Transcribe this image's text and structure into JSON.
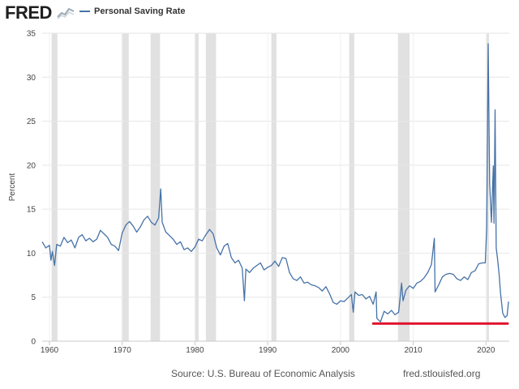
{
  "header": {
    "logo_text": "FRED",
    "series_label": "Personal Saving Rate",
    "line_color": "#4572a7"
  },
  "footer": {
    "source": "Source: U.S. Bureau of Economic Analysis",
    "url": "fred.stlouisfed.org"
  },
  "chart_data": {
    "type": "line",
    "title": "Personal Saving Rate",
    "xlabel": "",
    "ylabel": "Percent",
    "xlim": [
      1959,
      2023.2
    ],
    "ylim": [
      0,
      35
    ],
    "x_ticks": [
      1960,
      1970,
      1980,
      1990,
      2000,
      2010,
      2020
    ],
    "y_ticks": [
      0,
      5,
      10,
      15,
      20,
      25,
      30,
      35
    ],
    "grid": true,
    "recessions": [
      [
        1960.3,
        1961.1
      ],
      [
        1969.9,
        1970.9
      ],
      [
        1973.9,
        1975.2
      ],
      [
        1980.0,
        1980.5
      ],
      [
        1981.5,
        1982.9
      ],
      [
        1990.5,
        1991.2
      ],
      [
        2001.2,
        2001.9
      ],
      [
        2007.9,
        2009.5
      ],
      [
        2020.1,
        2020.4
      ]
    ],
    "annotation": {
      "type": "horizontal-line",
      "y": 2.0,
      "x_start": 2004.5,
      "x_end": 2023.2,
      "color": "#e0102a"
    },
    "series": [
      {
        "name": "Personal Saving Rate",
        "color": "#4572a7",
        "points": [
          [
            1959.0,
            11.3
          ],
          [
            1959.5,
            10.6
          ],
          [
            1960.0,
            10.9
          ],
          [
            1960.2,
            9.2
          ],
          [
            1960.4,
            10.2
          ],
          [
            1960.7,
            8.6
          ],
          [
            1961.0,
            11.0
          ],
          [
            1961.5,
            10.8
          ],
          [
            1962.0,
            11.8
          ],
          [
            1962.5,
            11.2
          ],
          [
            1963.0,
            11.5
          ],
          [
            1963.5,
            10.6
          ],
          [
            1964.0,
            11.8
          ],
          [
            1964.5,
            12.1
          ],
          [
            1965.0,
            11.4
          ],
          [
            1965.5,
            11.7
          ],
          [
            1966.0,
            11.3
          ],
          [
            1966.5,
            11.6
          ],
          [
            1967.0,
            12.6
          ],
          [
            1967.5,
            12.2
          ],
          [
            1968.0,
            11.8
          ],
          [
            1968.5,
            11.0
          ],
          [
            1969.0,
            10.8
          ],
          [
            1969.5,
            10.3
          ],
          [
            1970.0,
            12.3
          ],
          [
            1970.5,
            13.2
          ],
          [
            1971.0,
            13.6
          ],
          [
            1971.5,
            13.1
          ],
          [
            1972.0,
            12.4
          ],
          [
            1972.5,
            13.0
          ],
          [
            1973.0,
            13.8
          ],
          [
            1973.5,
            14.2
          ],
          [
            1974.0,
            13.5
          ],
          [
            1974.5,
            13.2
          ],
          [
            1975.0,
            14.0
          ],
          [
            1975.3,
            17.3
          ],
          [
            1975.5,
            13.5
          ],
          [
            1976.0,
            12.4
          ],
          [
            1976.5,
            12.0
          ],
          [
            1977.0,
            11.6
          ],
          [
            1977.5,
            11.0
          ],
          [
            1978.0,
            11.3
          ],
          [
            1978.5,
            10.4
          ],
          [
            1979.0,
            10.6
          ],
          [
            1979.5,
            10.2
          ],
          [
            1980.0,
            10.7
          ],
          [
            1980.5,
            11.6
          ],
          [
            1981.0,
            11.4
          ],
          [
            1981.5,
            12.1
          ],
          [
            1982.0,
            12.7
          ],
          [
            1982.5,
            12.2
          ],
          [
            1983.0,
            10.6
          ],
          [
            1983.5,
            9.8
          ],
          [
            1984.0,
            10.8
          ],
          [
            1984.5,
            11.1
          ],
          [
            1985.0,
            9.5
          ],
          [
            1985.5,
            8.9
          ],
          [
            1986.0,
            9.2
          ],
          [
            1986.5,
            8.3
          ],
          [
            1986.8,
            4.6
          ],
          [
            1987.0,
            8.2
          ],
          [
            1987.5,
            7.8
          ],
          [
            1988.0,
            8.3
          ],
          [
            1988.5,
            8.6
          ],
          [
            1989.0,
            8.9
          ],
          [
            1989.5,
            8.1
          ],
          [
            1990.0,
            8.4
          ],
          [
            1990.5,
            8.6
          ],
          [
            1991.0,
            9.1
          ],
          [
            1991.5,
            8.5
          ],
          [
            1992.0,
            9.5
          ],
          [
            1992.5,
            9.4
          ],
          [
            1993.0,
            7.8
          ],
          [
            1993.5,
            7.1
          ],
          [
            1994.0,
            6.9
          ],
          [
            1994.5,
            7.3
          ],
          [
            1995.0,
            6.6
          ],
          [
            1995.5,
            6.7
          ],
          [
            1996.0,
            6.4
          ],
          [
            1996.5,
            6.3
          ],
          [
            1997.0,
            6.1
          ],
          [
            1997.5,
            5.7
          ],
          [
            1998.0,
            6.2
          ],
          [
            1998.5,
            5.4
          ],
          [
            1999.0,
            4.4
          ],
          [
            1999.5,
            4.2
          ],
          [
            2000.0,
            4.6
          ],
          [
            2000.5,
            4.5
          ],
          [
            2001.0,
            4.9
          ],
          [
            2001.5,
            5.3
          ],
          [
            2001.75,
            3.3
          ],
          [
            2002.0,
            5.6
          ],
          [
            2002.5,
            5.2
          ],
          [
            2003.0,
            5.3
          ],
          [
            2003.5,
            4.8
          ],
          [
            2004.0,
            5.1
          ],
          [
            2004.5,
            4.2
          ],
          [
            2004.9,
            5.6
          ],
          [
            2005.0,
            2.6
          ],
          [
            2005.5,
            2.2
          ],
          [
            2006.0,
            3.4
          ],
          [
            2006.5,
            3.1
          ],
          [
            2007.0,
            3.5
          ],
          [
            2007.5,
            3.0
          ],
          [
            2008.0,
            3.3
          ],
          [
            2008.4,
            6.6
          ],
          [
            2008.6,
            4.6
          ],
          [
            2009.0,
            5.8
          ],
          [
            2009.5,
            6.3
          ],
          [
            2010.0,
            6.0
          ],
          [
            2010.5,
            6.6
          ],
          [
            2011.0,
            6.8
          ],
          [
            2011.5,
            7.2
          ],
          [
            2012.0,
            7.8
          ],
          [
            2012.5,
            8.7
          ],
          [
            2012.9,
            11.7
          ],
          [
            2013.0,
            5.6
          ],
          [
            2013.5,
            6.4
          ],
          [
            2014.0,
            7.3
          ],
          [
            2014.5,
            7.6
          ],
          [
            2015.0,
            7.7
          ],
          [
            2015.5,
            7.6
          ],
          [
            2016.0,
            7.1
          ],
          [
            2016.5,
            6.9
          ],
          [
            2017.0,
            7.3
          ],
          [
            2017.5,
            7.0
          ],
          [
            2018.0,
            7.8
          ],
          [
            2018.5,
            8.0
          ],
          [
            2019.0,
            8.8
          ],
          [
            2019.5,
            8.9
          ],
          [
            2019.9,
            8.9
          ],
          [
            2020.1,
            12.9
          ],
          [
            2020.3,
            33.8
          ],
          [
            2020.5,
            17.9
          ],
          [
            2020.75,
            13.5
          ],
          [
            2021.0,
            19.9
          ],
          [
            2021.1,
            13.4
          ],
          [
            2021.25,
            26.3
          ],
          [
            2021.4,
            10.6
          ],
          [
            2021.6,
            9.3
          ],
          [
            2021.8,
            7.7
          ],
          [
            2022.0,
            5.5
          ],
          [
            2022.3,
            3.2
          ],
          [
            2022.6,
            2.7
          ],
          [
            2022.9,
            2.9
          ],
          [
            2023.1,
            4.5
          ]
        ]
      }
    ]
  }
}
